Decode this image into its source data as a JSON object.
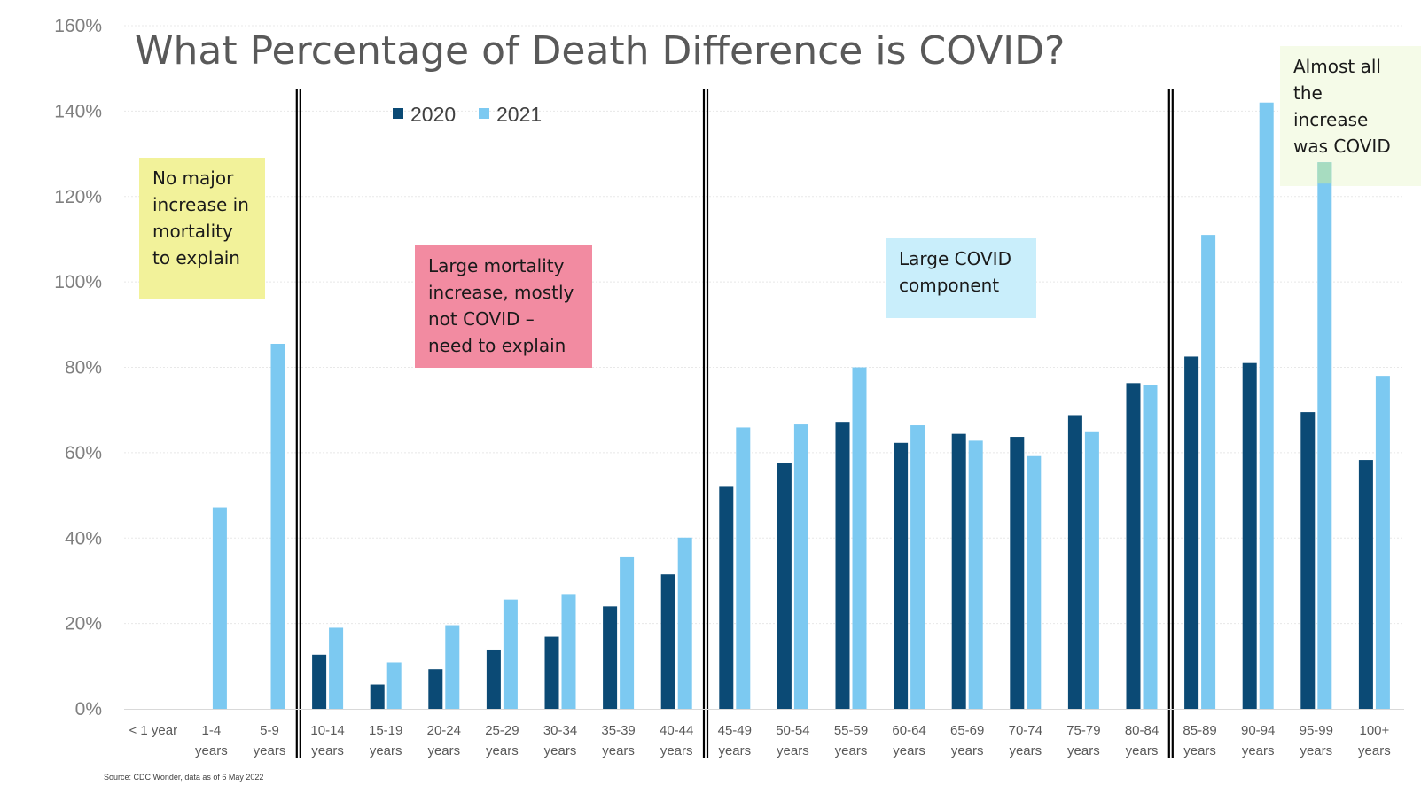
{
  "chart_data": {
    "type": "bar",
    "title": "What Percentage of Death Difference is COVID?",
    "xlabel": "",
    "ylabel": "",
    "ylim": [
      0,
      160
    ],
    "yticks": [
      "0%",
      "20%",
      "40%",
      "60%",
      "80%",
      "100%",
      "120%",
      "140%",
      "160%"
    ],
    "legend_position": "top-left",
    "grid": true,
    "categories": [
      [
        "< 1 year",
        ""
      ],
      [
        "1-4",
        "years"
      ],
      [
        "5-9",
        "years"
      ],
      [
        "10-14",
        "years"
      ],
      [
        "15-19",
        "years"
      ],
      [
        "20-24",
        "years"
      ],
      [
        "25-29",
        "years"
      ],
      [
        "30-34",
        "years"
      ],
      [
        "35-39",
        "years"
      ],
      [
        "40-44",
        "years"
      ],
      [
        "45-49",
        "years"
      ],
      [
        "50-54",
        "years"
      ],
      [
        "55-59",
        "years"
      ],
      [
        "60-64",
        "years"
      ],
      [
        "65-69",
        "years"
      ],
      [
        "70-74",
        "years"
      ],
      [
        "75-79",
        "years"
      ],
      [
        "80-84",
        "years"
      ],
      [
        "85-89",
        "years"
      ],
      [
        "90-94",
        "years"
      ],
      [
        "95-99",
        "years"
      ],
      [
        "100+",
        "years"
      ]
    ],
    "series": [
      {
        "name": "2020",
        "color": "#0b4a75",
        "values": [
          null,
          null,
          null,
          12.7,
          5.7,
          9.3,
          13.7,
          16.9,
          24.0,
          31.5,
          52.0,
          57.5,
          67.2,
          62.3,
          64.4,
          63.7,
          68.8,
          76.3,
          82.5,
          81.0,
          69.5,
          58.3
        ]
      },
      {
        "name": "2021",
        "color": "#7cc9f1",
        "values": [
          null,
          47.2,
          85.5,
          19.0,
          10.9,
          19.6,
          25.6,
          26.9,
          35.5,
          40.1,
          65.9,
          66.6,
          80.0,
          66.4,
          62.8,
          59.2,
          65.0,
          75.9,
          111.0,
          142.0,
          128.0,
          78.0
        ]
      }
    ],
    "group_separators_after": [
      "5-9",
      "40-44",
      "80-84"
    ],
    "annotations": [
      {
        "lines": [
          "No major",
          "increase in",
          "mortality",
          "to explain"
        ],
        "bg": "#f2f29a"
      },
      {
        "lines": [
          "Large mortality",
          "increase, mostly",
          "not COVID –",
          "need to explain"
        ],
        "bg": "#f28ba1"
      },
      {
        "lines": [
          "Large COVID",
          "component"
        ],
        "bg": "#c9eefb"
      },
      {
        "lines": [
          "Almost all",
          "the",
          "increase",
          "was COVID"
        ],
        "bg": "#f5fbe8"
      }
    ],
    "source": "Source: CDC Wonder, data as of 6 May 2022"
  }
}
